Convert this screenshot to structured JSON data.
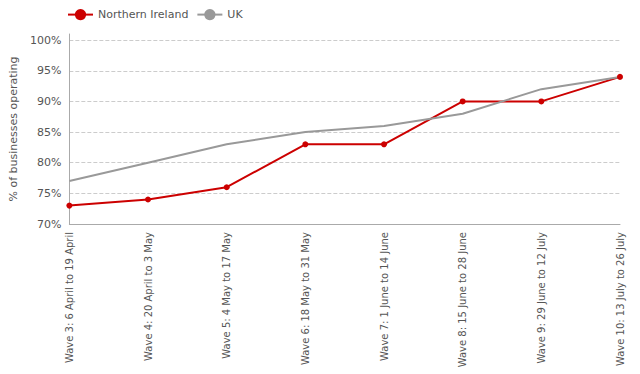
{
  "chart_data": {
    "type": "line",
    "ylabel": "% of businesses operating",
    "categories": [
      "Wave 3: 6 April to 19 April",
      "Wave 4: 20 April to 3 May",
      "Wave 5: 4 May to 17 May",
      "Wave 6: 18 May to 31 May",
      "Wave 7: 1 June to 14 June",
      "Wave 8: 15 June to 28 June",
      "Wave 9: 29 June to 12 July",
      "Wave 10: 13 July to 26 July"
    ],
    "series": [
      {
        "name": "Northern Ireland",
        "color": "#cc0000",
        "marker": "circle",
        "values": [
          73,
          74,
          76,
          83,
          83,
          90,
          90,
          94
        ]
      },
      {
        "name": "UK",
        "color": "#999999",
        "marker": "none",
        "values": [
          77,
          80,
          83,
          85,
          86,
          88,
          92,
          94
        ]
      }
    ],
    "ylim": [
      70,
      101
    ],
    "yticks": [
      {
        "value": 70,
        "label": "70%"
      },
      {
        "value": 75,
        "label": "75%"
      },
      {
        "value": 80,
        "label": "80%"
      },
      {
        "value": 85,
        "label": "85%"
      },
      {
        "value": 90,
        "label": "90%"
      },
      {
        "value": 95,
        "label": "95%"
      },
      {
        "value": 100,
        "label": "100%"
      }
    ],
    "grid": true,
    "legend": "upper left"
  }
}
